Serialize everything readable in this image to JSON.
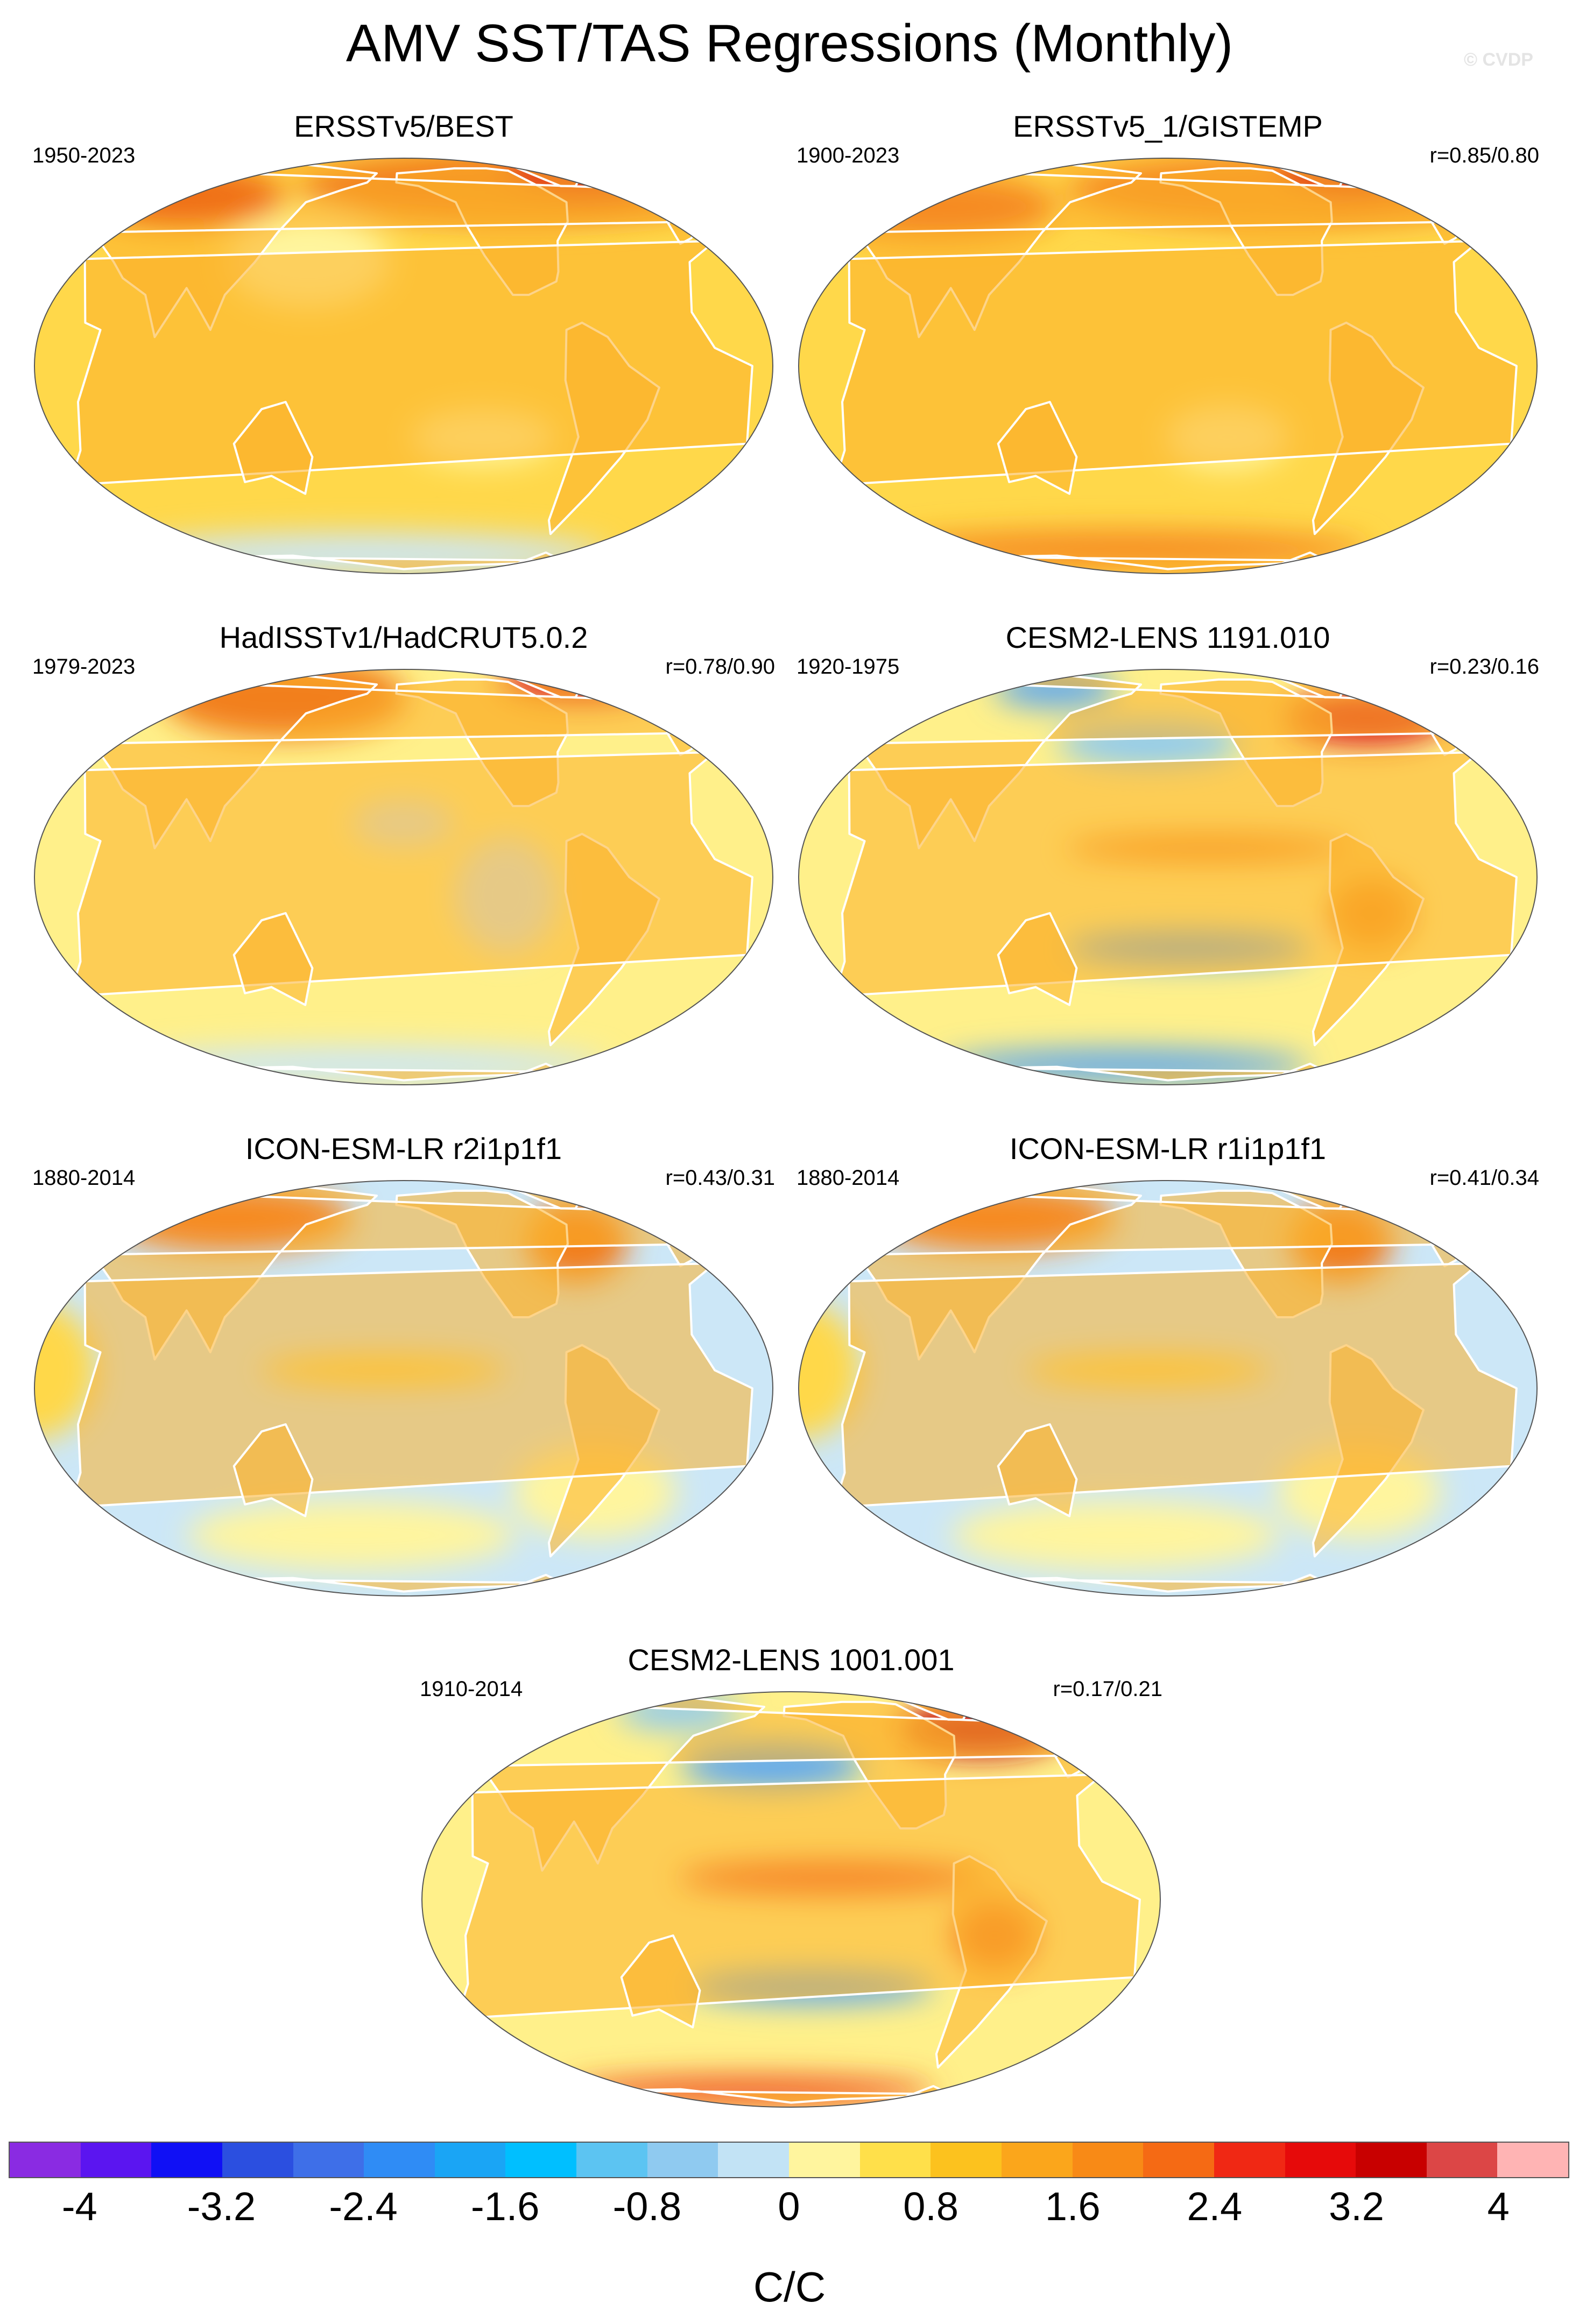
{
  "figure": {
    "title": "AMV SST/TAS Regressions (Monthly)",
    "copyright": "© CVDP"
  },
  "panels": [
    {
      "title": "ERSSTv5/BEST",
      "period": "1950-2023",
      "correlation": "",
      "ocean_color": "#ffd84a",
      "land_color": "#fbb12a",
      "patterns": [
        {
          "lon": -80,
          "lat": 60,
          "rlon": 110,
          "rlat": 16,
          "color": "#f27f1c"
        },
        {
          "lon": 60,
          "lat": 55,
          "rlon": 50,
          "rlat": 14,
          "color": "#f07018"
        },
        {
          "lon": 150,
          "lat": 30,
          "rlon": 40,
          "rlat": 20,
          "color": "#fff59e"
        },
        {
          "lon": 170,
          "lat": -65,
          "rlon": 120,
          "rlat": 9,
          "color": "#cce7f7"
        },
        {
          "lon": -120,
          "lat": -20,
          "rlon": 35,
          "rlat": 12,
          "color": "#fff59e"
        },
        {
          "lon": -20,
          "lat": 70,
          "rlon": 40,
          "rlat": 10,
          "color": "#e0251c"
        }
      ]
    },
    {
      "title": "ERSSTv5_1/GISTEMP",
      "period": "1900-2023",
      "correlation": "r=0.85/0.80",
      "ocean_color": "#ffd84a",
      "land_color": "#fbb12a",
      "patterns": [
        {
          "lon": -80,
          "lat": 58,
          "rlon": 110,
          "rlat": 16,
          "color": "#f68b22"
        },
        {
          "lon": 60,
          "lat": 50,
          "rlon": 60,
          "rlat": 15,
          "color": "#f68b22"
        },
        {
          "lon": -130,
          "lat": -20,
          "rlon": 30,
          "rlat": 14,
          "color": "#fff59e"
        },
        {
          "lon": 170,
          "lat": -62,
          "rlon": 120,
          "rlat": 8,
          "color": "#f68b22"
        },
        {
          "lon": -20,
          "lat": 70,
          "rlon": 35,
          "rlat": 10,
          "color": "#e0251c"
        }
      ]
    },
    {
      "title": "HadISSTv1/HadCRUT5.0.2",
      "period": "1979-2023",
      "correlation": "r=0.78/0.90",
      "ocean_color": "#fff08a",
      "land_color": "#fbb12a",
      "patterns": [
        {
          "lon": 120,
          "lat": 60,
          "rlon": 60,
          "rlat": 18,
          "color": "#f27f1c"
        },
        {
          "lon": -20,
          "lat": 72,
          "rlon": 40,
          "rlat": 10,
          "color": "#e0251c"
        },
        {
          "lon": -110,
          "lat": -5,
          "rlon": 25,
          "rlat": 25,
          "color": "#cce7f7"
        },
        {
          "lon": -160,
          "lat": 15,
          "rlon": 25,
          "rlat": 10,
          "color": "#cce7f7"
        },
        {
          "lon": 170,
          "lat": -65,
          "rlon": 120,
          "rlat": 8,
          "color": "#cce7f7"
        }
      ]
    },
    {
      "title": "CESM2-LENS 1191.010",
      "period": "1920-1975",
      "correlation": "r=0.23/0.16",
      "ocean_color": "#fff08a",
      "land_color": "#fbb12a",
      "patterns": [
        {
          "lon": -170,
          "lat": 40,
          "rlon": 45,
          "rlat": 10,
          "color": "#8fcaf0"
        },
        {
          "lon": -150,
          "lat": -20,
          "rlon": 60,
          "rlat": 7,
          "color": "#5fa8f0"
        },
        {
          "lon": -140,
          "lat": 8,
          "rlon": 70,
          "rlat": 6,
          "color": "#f68b22"
        },
        {
          "lon": -40,
          "lat": 50,
          "rlon": 40,
          "rlat": 12,
          "color": "#e0251c"
        },
        {
          "lon": 120,
          "lat": 65,
          "rlon": 30,
          "rlat": 8,
          "color": "#5fa8f0"
        },
        {
          "lon": 170,
          "lat": -65,
          "rlon": 90,
          "rlat": 7,
          "color": "#5fa8f0"
        },
        {
          "lon": -60,
          "lat": -10,
          "rlon": 20,
          "rlat": 15,
          "color": "#f27f1c"
        }
      ]
    },
    {
      "title": "ICON-ESM-LR r2i1p1f1",
      "period": "1880-2014",
      "correlation": "r=0.43/0.31",
      "ocean_color": "#cce7f7",
      "land_color": "#fbb12a",
      "patterns": [
        {
          "lon": -60,
          "lat": 45,
          "rlon": 25,
          "rlat": 18,
          "color": "#f27f1c"
        },
        {
          "lon": 90,
          "lat": 55,
          "rlon": 60,
          "rlat": 15,
          "color": "#f68b22"
        },
        {
          "lon": -170,
          "lat": 5,
          "rlon": 60,
          "rlat": 7,
          "color": "#ffd84a"
        },
        {
          "lon": 20,
          "lat": 5,
          "rlon": 30,
          "rlat": 30,
          "color": "#ffd84a"
        },
        {
          "lon": -60,
          "lat": -30,
          "rlon": 40,
          "rlat": 20,
          "color": "#fff59e"
        },
        {
          "lon": 170,
          "lat": -45,
          "rlon": 80,
          "rlat": 15,
          "color": "#fff59e"
        }
      ]
    },
    {
      "title": "ICON-ESM-LR r1i1p1f1",
      "period": "1880-2014",
      "correlation": "r=0.41/0.34",
      "ocean_color": "#cce7f7",
      "land_color": "#fbb12a",
      "patterns": [
        {
          "lon": -60,
          "lat": 45,
          "rlon": 25,
          "rlat": 18,
          "color": "#f27f1c"
        },
        {
          "lon": 90,
          "lat": 55,
          "rlon": 60,
          "rlat": 15,
          "color": "#f68b22"
        },
        {
          "lon": -170,
          "lat": 5,
          "rlon": 60,
          "rlat": 7,
          "color": "#ffd84a"
        },
        {
          "lon": 20,
          "lat": 5,
          "rlon": 30,
          "rlat": 30,
          "color": "#ffd84a"
        },
        {
          "lon": -60,
          "lat": -30,
          "rlon": 40,
          "rlat": 20,
          "color": "#fff59e"
        },
        {
          "lon": 170,
          "lat": -45,
          "rlon": 80,
          "rlat": 15,
          "color": "#fff59e"
        }
      ]
    },
    {
      "title": "CESM2-LENS 1001.001",
      "period": "1910-2014",
      "correlation": "r=0.17/0.21",
      "ocean_color": "#fff08a",
      "land_color": "#fbb12a",
      "patterns": [
        {
          "lon": -170,
          "lat": 40,
          "rlon": 45,
          "rlat": 10,
          "color": "#5fa8f0"
        },
        {
          "lon": -150,
          "lat": -25,
          "rlon": 60,
          "rlat": 7,
          "color": "#5fa8f0"
        },
        {
          "lon": -140,
          "lat": 6,
          "rlon": 75,
          "rlat": 7,
          "color": "#f05020"
        },
        {
          "lon": -40,
          "lat": 55,
          "rlon": 40,
          "rlat": 12,
          "color": "#c81414"
        },
        {
          "lon": 120,
          "lat": 65,
          "rlon": 30,
          "rlat": 8,
          "color": "#8fcaf0"
        },
        {
          "lon": 170,
          "lat": -67,
          "rlon": 90,
          "rlat": 6,
          "color": "#f05020"
        },
        {
          "lon": -60,
          "lat": -10,
          "rlon": 20,
          "rlat": 15,
          "color": "#f05020"
        }
      ]
    }
  ],
  "legend": {
    "unit": "C/C",
    "tick_labels": [
      "-4",
      "-3.2",
      "-2.4",
      "-1.6",
      "-0.8",
      "0",
      "0.8",
      "1.6",
      "2.4",
      "3.2",
      "4"
    ],
    "tick_values": [
      -4,
      -3.2,
      -2.4,
      -1.6,
      -0.8,
      0,
      0.8,
      1.6,
      2.4,
      3.2,
      4
    ],
    "colors": [
      "#8a2be2",
      "#5b15f0",
      "#1010f5",
      "#2b4fe0",
      "#3e6fe8",
      "#2f8cf5",
      "#1aa5f5",
      "#00bfff",
      "#5cc4f2",
      "#8fcaf0",
      "#c2e3f5",
      "#fff59e",
      "#ffe04a",
      "#fcc21e",
      "#fba61b",
      "#f88a16",
      "#f56a14",
      "#f02814",
      "#e60a0a",
      "#c80000",
      "#dc4646",
      "#ffb4b4"
    ]
  }
}
